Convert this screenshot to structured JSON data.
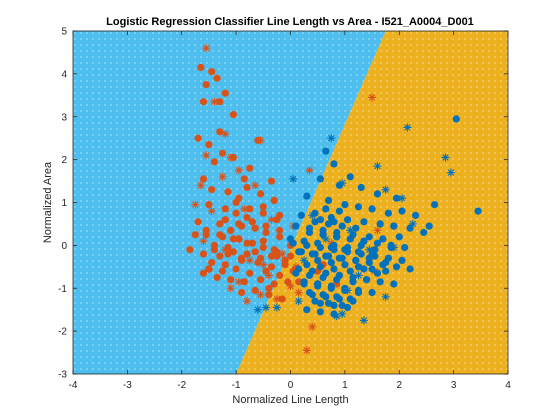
{
  "chart_data": {
    "type": "scatter",
    "title": "Logistic Regression Classifier Line Length vs Area - I521_A0004_D001",
    "xlabel": "Normalized Line Length",
    "ylabel": "Normalized Area",
    "xlim": [
      -4,
      4
    ],
    "ylim": [
      -3,
      5
    ],
    "xticks": [
      "-4",
      "-3",
      "-2",
      "-1",
      "0",
      "1",
      "2",
      "3",
      "4"
    ],
    "yticks": [
      "-3",
      "-2",
      "-1",
      "0",
      "1",
      "2",
      "3",
      "4",
      "5"
    ],
    "grid": false,
    "legend": "none",
    "decision_boundary": {
      "points": [
        [
          -1.0,
          -3.0
        ],
        [
          1.75,
          5.0
        ]
      ]
    },
    "regions": [
      {
        "side": "left",
        "color": "#4DBEEE"
      },
      {
        "side": "right",
        "color": "#EDB120"
      }
    ],
    "series": [
      {
        "marker": "circle",
        "color": "#D95319",
        "x": [
          -1.65,
          -1.45,
          -1.55,
          -1.35,
          -1.6,
          -1.3,
          -1.2,
          -1.05,
          -1.3,
          -1.7,
          -1.5,
          -1.25,
          -1.4,
          -1.05,
          -0.6,
          -0.75,
          -1.6,
          -0.85,
          -1.45,
          -0.35,
          -1.15,
          -0.95,
          -0.3,
          -1.5,
          -1.2,
          -0.5,
          -1.0,
          -0.8,
          -0.2,
          -1.7,
          -1.3,
          -0.9,
          -1.1,
          -0.65,
          -0.45,
          -1.55,
          -1.25,
          -0.95,
          -0.5,
          -0.2,
          -1.4,
          -1.15,
          -0.7,
          -0.3,
          0.0,
          -1.6,
          -1.3,
          -1.05,
          -0.8,
          -0.55,
          -0.25,
          -1.45,
          -1.2,
          -0.9,
          -0.6,
          -0.35,
          -0.1,
          -1.5,
          -1.25,
          -1.0,
          -0.75,
          -0.45,
          -0.2,
          0.05,
          -1.35,
          -1.1,
          -0.85,
          -0.55,
          -0.3,
          -0.05,
          -1.55,
          -1.3,
          -1.05,
          -0.8,
          -0.5,
          -0.25,
          0.0,
          -1.4,
          -1.15,
          -0.9,
          -0.65,
          -0.35,
          -0.1,
          -1.2,
          -0.95,
          -0.7,
          -0.45,
          -0.2,
          -1.0,
          -0.75,
          -0.5,
          -0.25,
          -0.8,
          -0.55,
          -0.3,
          -0.65,
          -0.4,
          -1.75,
          -1.85,
          -1.6,
          -0.15,
          0.1,
          -0.9,
          -0.4,
          0.15,
          0.5,
          0.6,
          0.85,
          0.9
        ],
        "y": [
          4.15,
          4.05,
          3.75,
          3.9,
          3.35,
          3.35,
          3.55,
          3.05,
          2.65,
          2.5,
          2.35,
          2.15,
          1.95,
          2.05,
          2.45,
          1.8,
          1.55,
          1.55,
          1.3,
          1.5,
          1.25,
          1.1,
          1.05,
          0.95,
          0.85,
          0.9,
          0.75,
          0.65,
          0.7,
          0.55,
          0.5,
          0.45,
          0.35,
          0.4,
          0.3,
          0.25,
          0.2,
          0.15,
          0.1,
          0.2,
          0.0,
          -0.05,
          0.05,
          -0.1,
          0.0,
          -0.2,
          -0.25,
          -0.15,
          -0.2,
          -0.3,
          -0.25,
          -0.4,
          -0.45,
          -0.35,
          -0.4,
          -0.5,
          -0.45,
          -0.55,
          -0.6,
          -0.55,
          -0.65,
          -0.6,
          -0.7,
          -0.6,
          -0.75,
          -0.8,
          -0.85,
          -0.8,
          -0.9,
          -0.85,
          0.35,
          0.25,
          0.15,
          0.05,
          -0.05,
          -0.15,
          -0.25,
          -0.1,
          -0.2,
          -0.3,
          -0.15,
          -0.25,
          -0.35,
          0.6,
          0.5,
          0.55,
          0.45,
          0.35,
          1.0,
          0.85,
          0.75,
          0.6,
          1.35,
          1.2,
          1.05,
          -1.05,
          -1.15,
          0.25,
          -0.1,
          -0.65,
          -1.25,
          -0.55,
          -1.1,
          -1.0,
          -0.85,
          -0.6,
          -0.45,
          -0.9,
          -0.7
        ]
      },
      {
        "marker": "asterisk",
        "color": "#D95319",
        "x": [
          -1.55,
          -1.4,
          -1.65,
          -1.2,
          -0.55,
          -1.1,
          -1.55,
          -1.25,
          -0.95,
          -0.65,
          -1.75,
          -1.45,
          -0.85,
          -0.35,
          0.05,
          -1.6,
          -1.2,
          -0.75,
          -0.15,
          -1.5,
          -0.95,
          -0.4,
          0.1,
          -1.1,
          -0.55,
          0.0,
          -0.8,
          -0.25,
          0.15,
          0.35,
          1.6,
          1.9,
          0.75,
          -0.95,
          -0.5,
          0.4,
          0.3,
          1.55,
          1.5
        ],
        "y": [
          4.6,
          3.35,
          1.4,
          2.6,
          2.45,
          2.05,
          2.1,
          1.6,
          1.75,
          1.4,
          0.95,
          0.8,
          0.85,
          0.6,
          0.45,
          0.1,
          -0.1,
          -0.35,
          -0.2,
          -0.55,
          -0.85,
          -0.7,
          -0.5,
          -1.0,
          -1.15,
          -0.95,
          -1.3,
          -1.25,
          -1.1,
          1.75,
          0.35,
          0.45,
          0.05,
          0.15,
          -0.45,
          -1.9,
          -2.45,
          -0.6,
          3.45
        ]
      },
      {
        "marker": "circle",
        "color": "#0072BD",
        "x": [
          0.65,
          0.8,
          1.1,
          0.55,
          0.9,
          1.3,
          1.6,
          1.95,
          0.3,
          0.7,
          1.0,
          1.25,
          1.5,
          1.8,
          2.05,
          2.3,
          3.05,
          2.65,
          3.45,
          0.2,
          0.45,
          0.75,
          1.05,
          1.35,
          1.65,
          1.9,
          2.2,
          0.1,
          0.35,
          0.6,
          0.85,
          1.15,
          1.45,
          1.7,
          2.0,
          0.0,
          0.25,
          0.5,
          0.8,
          1.05,
          1.3,
          1.55,
          1.85,
          0.15,
          0.4,
          0.65,
          0.9,
          1.2,
          1.45,
          1.75,
          0.3,
          0.55,
          0.8,
          1.1,
          1.35,
          1.6,
          0.1,
          0.35,
          0.6,
          0.85,
          1.15,
          1.4,
          0.25,
          0.5,
          0.75,
          1.0,
          1.25,
          0.4,
          0.65,
          0.9,
          1.15,
          0.55,
          0.8,
          1.05,
          0.3,
          0.55,
          0.8,
          0.65,
          0.9,
          0.45,
          0.7,
          0.95,
          1.2,
          0.6,
          0.85,
          1.1,
          1.35,
          0.75,
          1.0,
          1.25,
          1.5,
          0.5,
          0.75,
          1.0,
          1.25,
          1.5,
          1.75,
          0.35,
          0.6,
          0.85,
          1.1,
          1.35,
          1.6,
          1.85,
          2.1,
          0.2,
          0.45,
          0.7,
          0.95,
          1.2,
          1.45,
          1.7,
          1.95,
          2.2,
          0.05,
          0.3,
          0.55,
          0.8,
          1.05,
          1.3,
          1.55,
          1.8,
          2.05,
          0.15,
          0.4,
          0.65,
          0.9,
          1.15,
          1.4,
          1.65,
          1.9,
          0.25,
          0.5,
          0.75,
          1.0,
          1.25,
          1.5,
          0.35,
          0.6,
          0.85,
          1.1,
          0.45,
          0.7,
          0.95,
          0.55,
          0.8,
          2.55,
          2.45
        ],
        "y": [
          2.2,
          1.9,
          1.6,
          1.55,
          1.4,
          1.35,
          1.2,
          1.1,
          1.15,
          1.05,
          0.95,
          0.9,
          0.85,
          0.75,
          0.8,
          0.7,
          2.95,
          0.95,
          0.8,
          0.7,
          0.75,
          0.65,
          0.6,
          0.55,
          0.5,
          0.45,
          0.4,
          0.45,
          0.4,
          0.35,
          0.3,
          0.25,
          0.2,
          0.15,
          0.2,
          0.15,
          0.1,
          0.05,
          0.0,
          -0.05,
          0.0,
          -0.1,
          -0.05,
          -0.15,
          -0.2,
          -0.25,
          -0.3,
          -0.35,
          -0.3,
          -0.4,
          -0.45,
          -0.5,
          -0.55,
          -0.6,
          -0.55,
          -0.65,
          -0.65,
          -0.7,
          -0.75,
          -0.8,
          -0.85,
          -0.8,
          -0.9,
          -0.95,
          -1.0,
          -1.05,
          -1.1,
          -1.15,
          -1.2,
          -1.25,
          -1.3,
          -1.35,
          -1.4,
          -1.45,
          -1.5,
          -1.55,
          -1.6,
          0.85,
          0.8,
          0.55,
          0.5,
          0.45,
          0.4,
          0.25,
          0.2,
          0.15,
          0.1,
          -0.05,
          -0.1,
          -0.15,
          -0.2,
          -0.35,
          -0.4,
          -0.45,
          -0.5,
          -0.55,
          -0.6,
          0.3,
          0.25,
          0.2,
          0.15,
          0.1,
          0.05,
          0.0,
          -0.05,
          -0.15,
          -0.2,
          -0.25,
          -0.3,
          -0.35,
          -0.4,
          -0.45,
          -0.5,
          -0.55,
          0.05,
          0.0,
          -0.05,
          -0.1,
          -0.15,
          -0.2,
          -0.25,
          -0.3,
          -0.35,
          -0.55,
          -0.6,
          -0.65,
          -0.7,
          -0.75,
          -0.8,
          -0.85,
          -0.9,
          -0.85,
          -0.9,
          -0.95,
          -1.0,
          -1.05,
          -1.1,
          -1.1,
          -1.15,
          -1.2,
          -1.25,
          -1.3,
          -1.35,
          -1.4,
          0.6,
          0.55,
          0.45,
          0.3
        ]
      },
      {
        "marker": "asterisk",
        "color": "#0072BD",
        "x": [
          0.75,
          0.05,
          0.95,
          1.6,
          1.75,
          2.05,
          2.15,
          2.85,
          0.4,
          1.1,
          0.65,
          1.45,
          1.9,
          2.25,
          0.25,
          1.25,
          0.5,
          1.75,
          1.05,
          0.15,
          -0.45,
          -0.6,
          -0.25,
          0.95,
          1.35,
          0.85,
          2.95
        ],
        "y": [
          2.5,
          1.55,
          1.45,
          1.85,
          1.3,
          1.1,
          2.75,
          2.05,
          0.7,
          0.35,
          0.15,
          -0.1,
          -0.05,
          0.5,
          -0.35,
          -0.7,
          -0.9,
          -1.2,
          -1.05,
          -1.3,
          -1.45,
          -1.5,
          -1.45,
          -1.6,
          -1.75,
          -1.65,
          1.7
        ]
      }
    ]
  }
}
